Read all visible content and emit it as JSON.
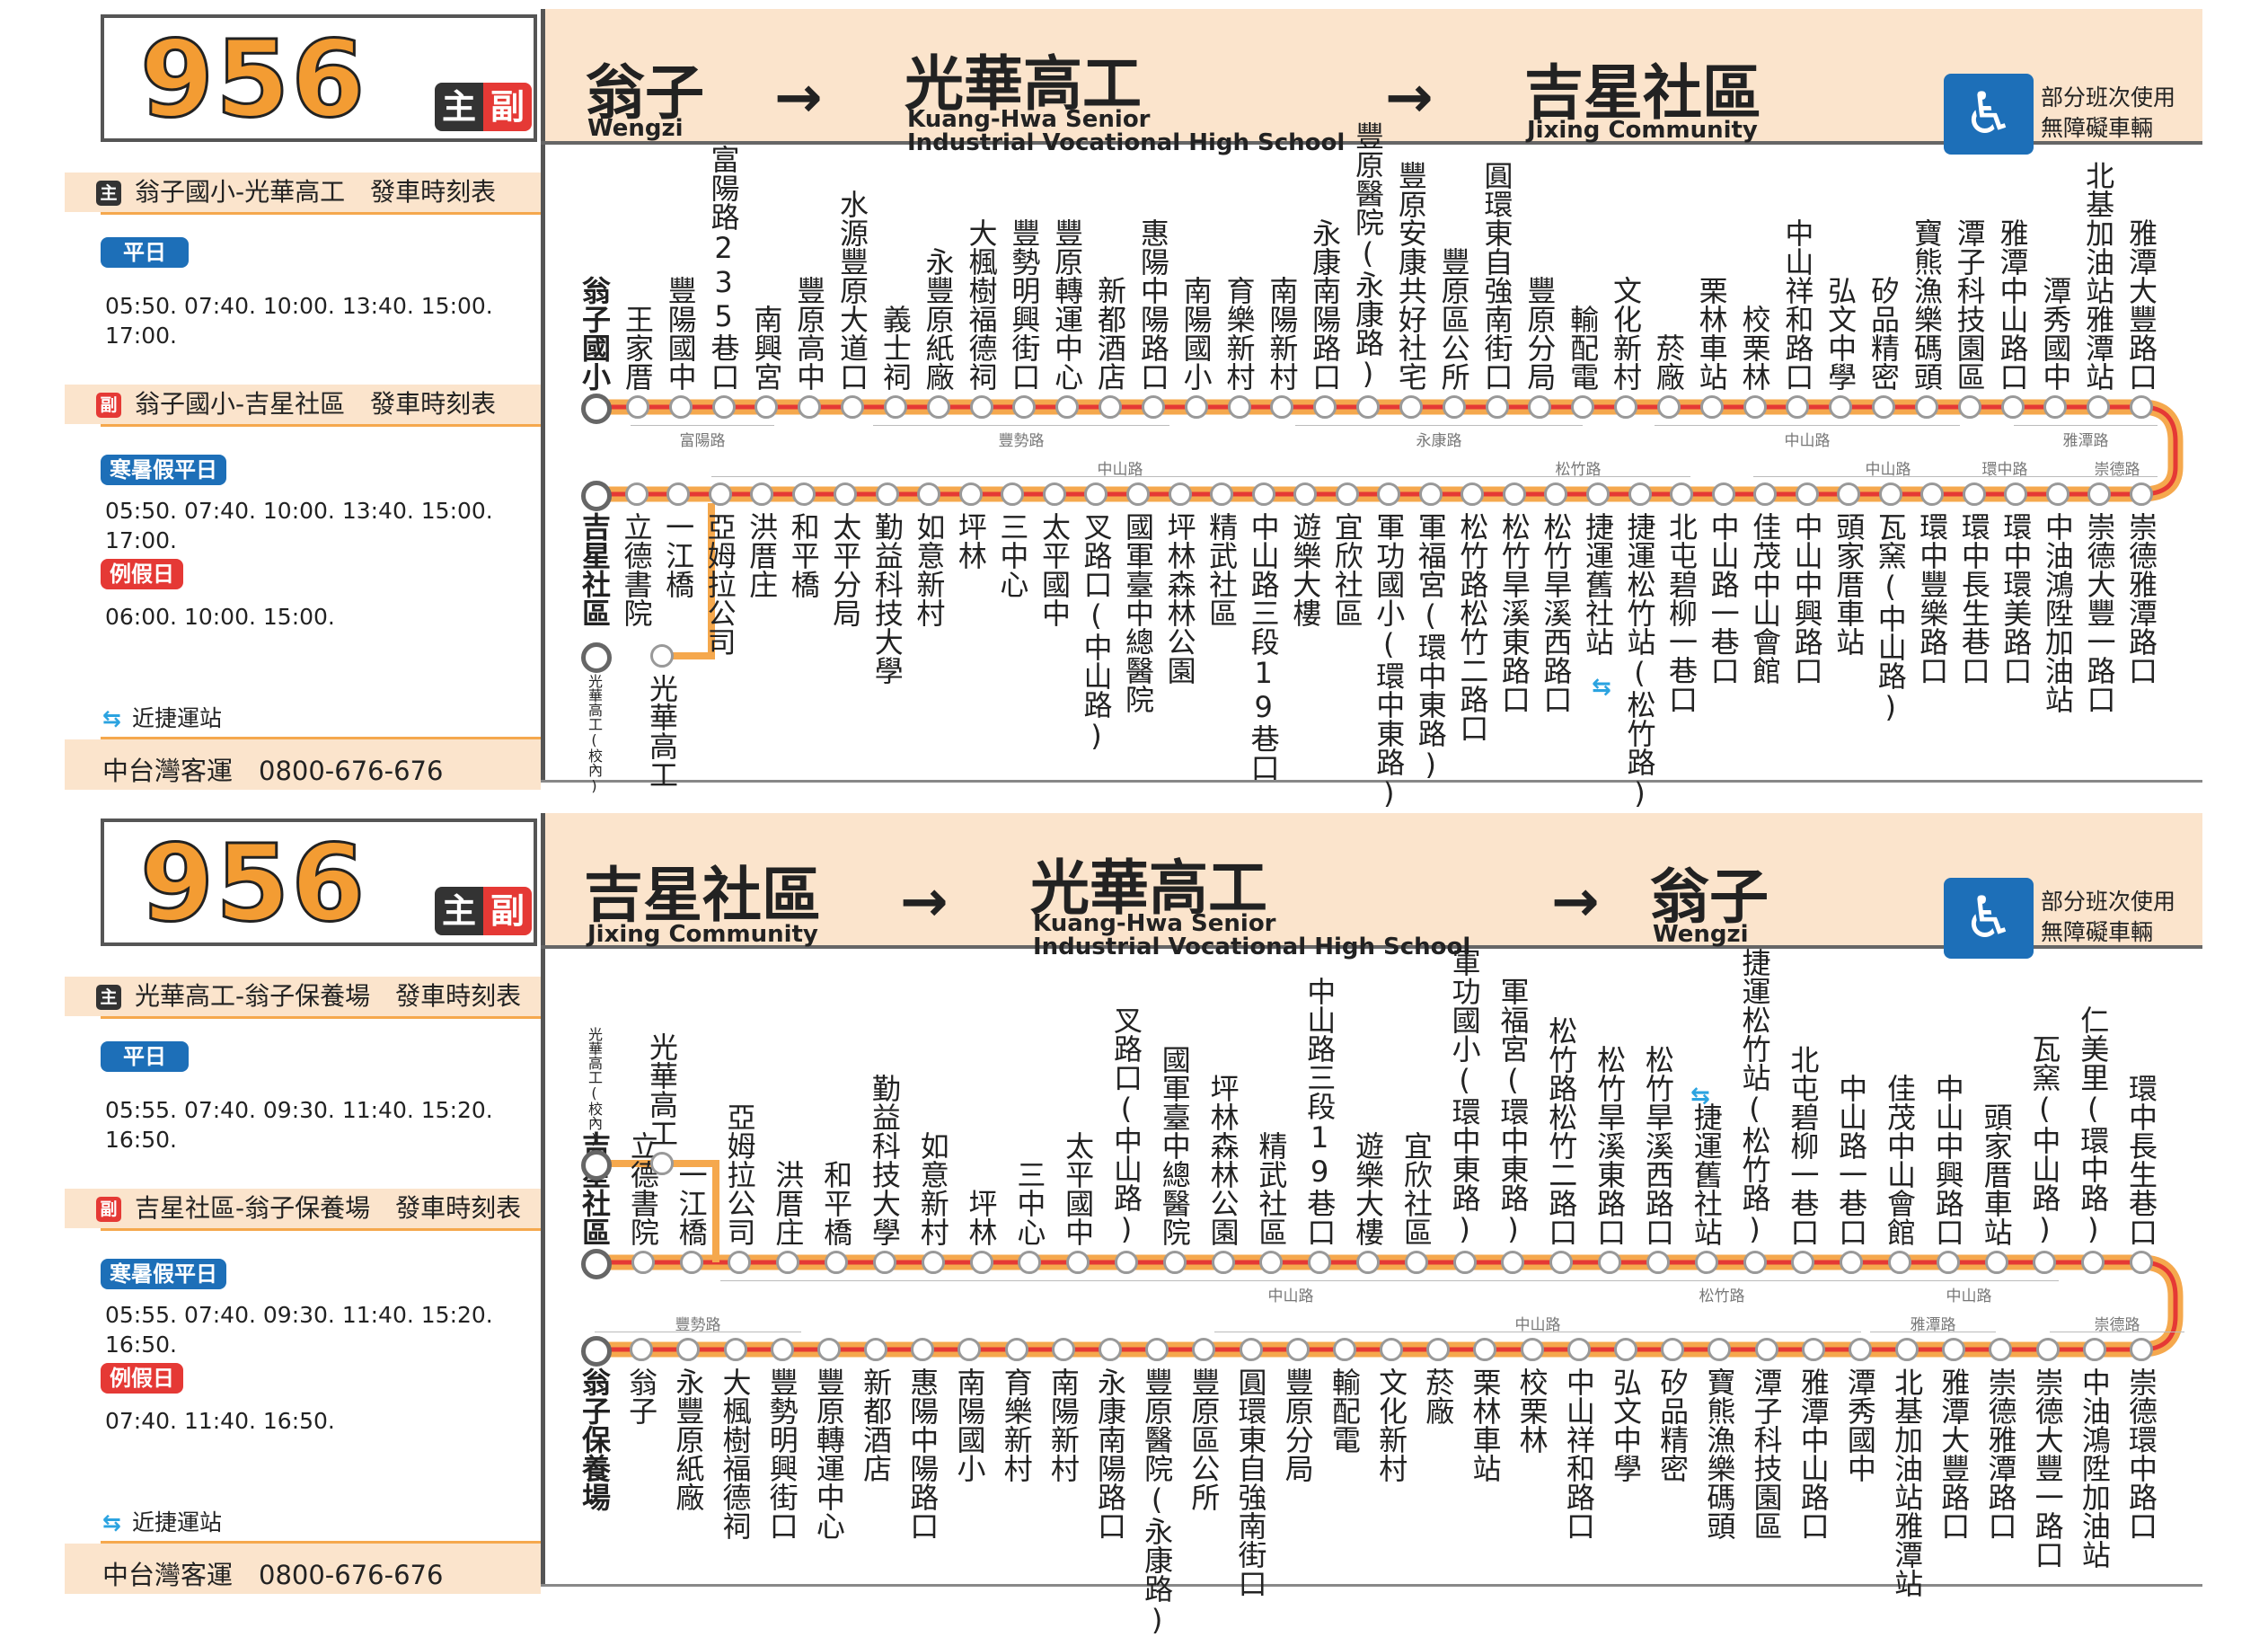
{
  "panels": [
    {
      "route_number": "956",
      "main_tag": "主",
      "sub_tag": "副",
      "origin": {
        "zh": "翁子",
        "en": "Wengzi"
      },
      "via": {
        "zh": "光華高工",
        "en1": "Kuang-Hwa Senior",
        "en2": "Industrial Vocational High School"
      },
      "destination": {
        "zh": "吉星社區",
        "en": "Jixing Community"
      },
      "accessible_note": [
        "部分班次使用",
        "無障礙車輛"
      ],
      "schedule_main_title": "翁子國小-光華高工　發車時刻表",
      "weekday_label": "平日",
      "weekday_times": "05:50. 07:40. 10:00. 13:40. 15:00. 17:00.",
      "schedule_sub_title": "翁子國小-吉星社區　發車時刻表",
      "vacation_label": "寒暑假平日",
      "vacation_times": "05:50. 07:40. 10:00. 13:40. 15:00. 17:00.",
      "holiday_label": "例假日",
      "holiday_times": "06:00. 10:00. 15:00.",
      "mrt_note": "近捷運站",
      "company": "中台灣客運　0800-676-676",
      "top_stops": [
        "翁子國小",
        "王家厝",
        "豐陽國中",
        "富陽路235巷口",
        "南興宮",
        "豐原高中",
        "水源豐原大道口",
        "義士祠",
        "永豐原紙廠",
        "大楓樹福德祠",
        "豐勢明興街口",
        "豐原轉運中心",
        "新都酒店",
        "惠陽中陽路口",
        "南陽國小",
        "育樂新村",
        "南陽新村",
        "永康南陽路口",
        "豐原醫院(永康路)",
        "豐原安康共好社宅",
        "豐原區公所",
        "圓環東自強南街口",
        "豐原分局",
        "輸配電",
        "文化新村",
        "菸廠",
        "栗林車站",
        "校栗林",
        "中山祥和路口",
        "弘文中學",
        "矽品精密",
        "寶熊漁樂碼頭",
        "潭子科技園區",
        "雅潭中山路口",
        "潭秀國中",
        "北基加油站雅潭站",
        "雅潭大豐路口"
      ],
      "bottom_stops": [
        "吉星社區",
        "立德書院",
        "一江橋",
        "亞姆拉公司",
        "洪厝庄",
        "和平橋",
        "太平分局",
        "勤益科技大學",
        "如意新村",
        "坪林",
        "三中心",
        "太平國中",
        "叉路口(中山路)",
        "國軍臺中總醫院",
        "坪林森林公園",
        "精武社區",
        "中山路三段19巷口",
        "遊樂大樓",
        "宜欣社區",
        "軍功國小(環中東路)",
        "軍福宮(環中東路)",
        "松竹路松竹二路口",
        "松竹旱溪東路口",
        "松竹旱溪西路口",
        "捷運舊社站",
        "捷運松竹站(松竹路)",
        "北屯碧柳一巷口",
        "中山路一巷口",
        "佳茂中山會館",
        "中山中興路口",
        "頭家厝車站",
        "瓦窯(中山路)",
        "環中豐樂路口",
        "環中長生巷口",
        "環中環美路口",
        "中油鴻陞加油站",
        "崇德大豐一路口",
        "崇德雅潭路口"
      ],
      "branch_stop": "光華高工",
      "branch_small": "光華高工(校內)",
      "top_roads": [
        "富陽路",
        "豐勢路",
        "永康路",
        "中山路",
        "雅潭路"
      ],
      "bottom_roads": [
        "中山路",
        "松竹路",
        "中山路",
        "環中路",
        "崇德路"
      ]
    },
    {
      "route_number": "956",
      "main_tag": "主",
      "sub_tag": "副",
      "origin": {
        "zh": "吉星社區",
        "en": "Jixing Community"
      },
      "via": {
        "zh": "光華高工",
        "en1": "Kuang-Hwa Senior",
        "en2": "Industrial Vocational High School"
      },
      "destination": {
        "zh": "翁子",
        "en": "Wengzi"
      },
      "accessible_note": [
        "部分班次使用",
        "無障礙車輛"
      ],
      "schedule_main_title": "光華高工-翁子保養場　發車時刻表",
      "weekday_label": "平日",
      "weekday_times": "05:55. 07:40. 09:30. 11:40. 15:20. 16:50.",
      "schedule_sub_title": "吉星社區-翁子保養場　發車時刻表",
      "vacation_label": "寒暑假平日",
      "vacation_times": "05:55. 07:40. 09:30. 11:40. 15:20. 16:50.",
      "holiday_label": "例假日",
      "holiday_times": "07:40. 11:40. 16:50.",
      "mrt_note": "近捷運站",
      "company": "中台灣客運　0800-676-676",
      "top_stops": [
        "吉星社區",
        "立德書院",
        "一江橋",
        "亞姆拉公司",
        "洪厝庄",
        "和平橋",
        "勤益科技大學",
        "如意新村",
        "坪林",
        "三中心",
        "太平國中",
        "叉路口(中山路)",
        "國軍臺中總醫院",
        "坪林森林公園",
        "精武社區",
        "中山路三段19巷口",
        "遊樂大樓",
        "宜欣社區",
        "軍功國小(環中東路)",
        "軍福宮(環中東路)",
        "松竹路松竹二路口",
        "松竹旱溪東路口",
        "松竹旱溪西路口",
        "捷運舊社站",
        "捷運松竹站(松竹路)",
        "北屯碧柳一巷口",
        "中山路一巷口",
        "佳茂中山會館",
        "中山中興路口",
        "頭家厝車站",
        "瓦窯(中山路)",
        "仁美里(環中路)",
        "環中長生巷口"
      ],
      "bottom_stops": [
        "翁子保養場",
        "翁子",
        "永豐原紙廠",
        "大楓樹福德祠",
        "豐勢明興街口",
        "豐原轉運中心",
        "新都酒店",
        "惠陽中陽路口",
        "南陽國小",
        "育樂新村",
        "南陽新村",
        "永康南陽路口",
        "豐原醫院(永康路)",
        "豐原區公所",
        "圓環東自強南街口",
        "豐原分局",
        "輸配電",
        "文化新村",
        "菸廠",
        "栗林車站",
        "校栗林",
        "中山祥和路口",
        "弘文中學",
        "矽品精密",
        "寶熊漁樂碼頭",
        "潭子科技園區",
        "雅潭中山路口",
        "潭秀國中",
        "北基加油站雅潭站",
        "雅潭大豐路口",
        "崇德雅潭路口",
        "崇德大豐一路口",
        "中油鴻陞加油站",
        "崇德環中路口"
      ],
      "branch_stop": "光華高工",
      "branch_small": "光華高工(校內)",
      "top_roads": [
        "中山路",
        "松竹路",
        "中山路"
      ],
      "bottom_roads": [
        "豐勢路",
        "中山路",
        "雅潭路",
        "崇德路"
      ]
    }
  ]
}
